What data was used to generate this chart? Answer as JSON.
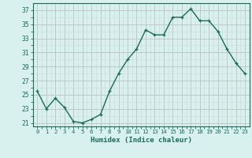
{
  "x": [
    0,
    1,
    2,
    3,
    4,
    5,
    6,
    7,
    8,
    9,
    10,
    11,
    12,
    13,
    14,
    15,
    16,
    17,
    18,
    19,
    20,
    21,
    22,
    23
  ],
  "y": [
    25.5,
    23.0,
    24.5,
    23.2,
    21.2,
    21.0,
    21.5,
    22.2,
    25.5,
    28.0,
    30.0,
    31.5,
    34.2,
    33.5,
    33.5,
    36.0,
    36.0,
    37.2,
    35.5,
    35.5,
    34.0,
    31.5,
    29.5,
    28.0
  ],
  "line_color": "#1a6b5a",
  "marker": "+",
  "bg_color": "#d8f0ee",
  "grid_major_color": "#c0c8c4",
  "grid_minor_color": "#d0dcd8",
  "xlabel": "Humidex (Indice chaleur)",
  "ylim": [
    20.5,
    38.0
  ],
  "xlim": [
    -0.5,
    23.5
  ],
  "yticks": [
    21,
    23,
    25,
    27,
    29,
    31,
    33,
    35,
    37
  ],
  "xticks": [
    0,
    1,
    2,
    3,
    4,
    5,
    6,
    7,
    8,
    9,
    10,
    11,
    12,
    13,
    14,
    15,
    16,
    17,
    18,
    19,
    20,
    21,
    22,
    23
  ],
  "tick_color": "#1a6b5a",
  "label_color": "#1a6b5a",
  "line_width": 1.0,
  "marker_size": 3.5,
  "marker_edge_width": 0.9
}
